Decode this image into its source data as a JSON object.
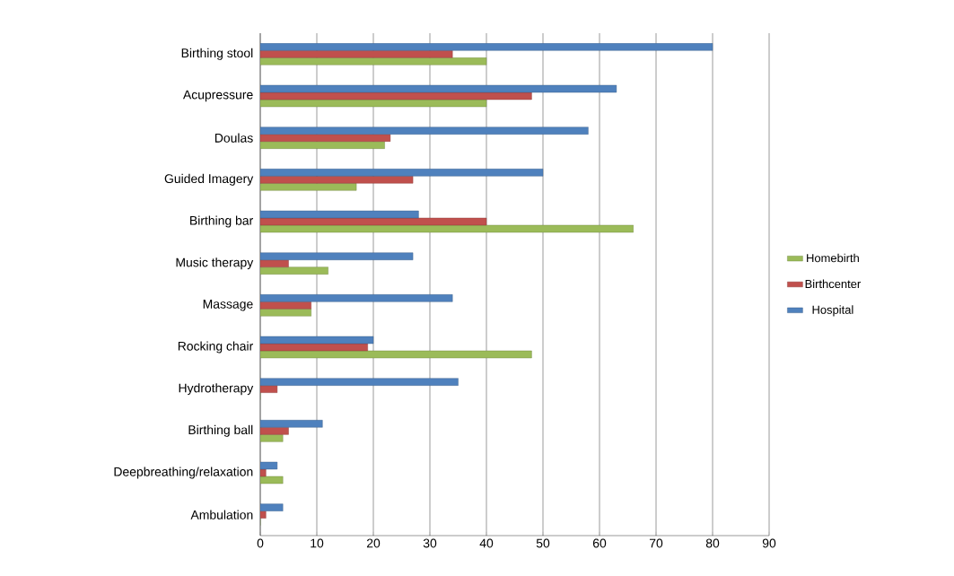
{
  "chart_data": {
    "type": "bar",
    "orientation": "horizontal",
    "categories": [
      "Birthing stool",
      "Acupressure",
      "Doulas",
      "Guided Imagery",
      "Birthing bar",
      "Music therapy",
      "Massage",
      "Rocking chair",
      "Hydrotherapy",
      "Birthing ball",
      "Deepbreathing/relaxation",
      "Ambulation"
    ],
    "series": [
      {
        "name": "Homebirth",
        "color": "#9bbb59",
        "values": [
          40,
          40,
          22,
          17,
          66,
          12,
          9,
          48,
          0,
          4,
          4,
          0
        ]
      },
      {
        "name": "Birthcenter",
        "color": "#c0504d",
        "values": [
          34,
          48,
          23,
          27,
          40,
          5,
          9,
          19,
          3,
          5,
          1,
          1
        ]
      },
      {
        "name": "Hospital",
        "color": "#4f81bd",
        "values": [
          80,
          63,
          58,
          50,
          28,
          27,
          34,
          20,
          35,
          11,
          3,
          4
        ]
      }
    ],
    "xlim": [
      0,
      90
    ],
    "xticks": [
      0,
      10,
      20,
      30,
      40,
      50,
      60,
      70,
      80,
      90
    ],
    "grid": "x",
    "legend": "right"
  }
}
